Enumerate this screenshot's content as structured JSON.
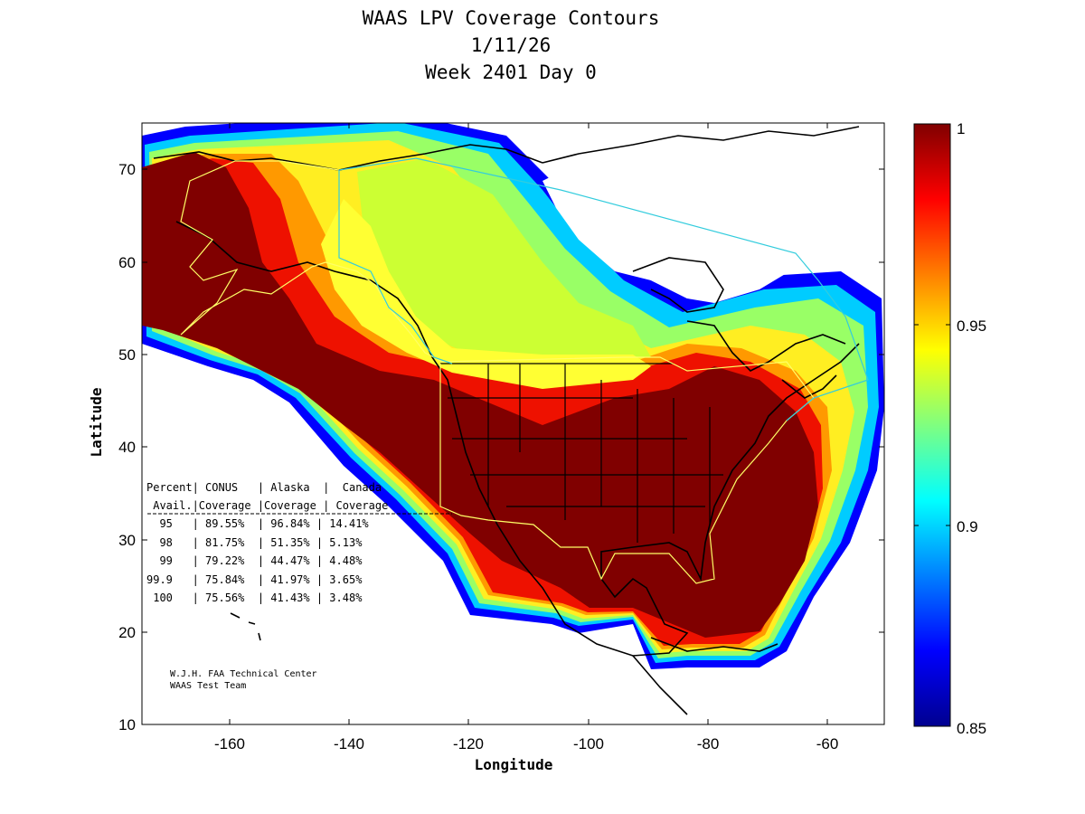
{
  "title": {
    "line1": "WAAS LPV Coverage Contours",
    "line2": "1/11/26",
    "line3": "Week 2401 Day 0"
  },
  "axes": {
    "xlabel": "Longitude",
    "ylabel": "Latitude",
    "xticks": [
      "-160",
      "-140",
      "-120",
      "-100",
      "-80",
      "-60"
    ],
    "yticks": [
      "70",
      "60",
      "50",
      "40",
      "30",
      "20",
      "10"
    ],
    "xlim": [
      -174,
      -50
    ],
    "ylim": [
      10,
      75
    ]
  },
  "colorbar": {
    "ticks": [
      "1",
      "0.95",
      "0.9",
      "0.85"
    ],
    "range": [
      0.85,
      1
    ],
    "colormap": "jet",
    "colors": [
      "#00008f",
      "#0000ff",
      "#00ffff",
      "#ffff00",
      "#ff0000",
      "#800000"
    ]
  },
  "table": {
    "header1": "Percent| CONUS   | Alaska  |  Canada",
    "header2": " Avail.|Coverage |Coverage | Coverage",
    "rows": [
      "  95   | 89.55%  | 96.84% | 14.41%",
      "  98   | 81.75%  | 51.35% | 5.13%",
      "  99   | 79.22%  | 44.47% | 4.48%",
      "99.9   | 75.84%  | 41.97% | 3.65%",
      " 100   | 75.56%  | 41.43% | 3.48%"
    ]
  },
  "credit": {
    "line1": "W.J.H. FAA Technical Center",
    "line2": "WAAS Test Team"
  },
  "colors": {
    "service_boundary": "#ffff66",
    "canada_boundary": "#33ccdd",
    "coastline": "#000000"
  }
}
